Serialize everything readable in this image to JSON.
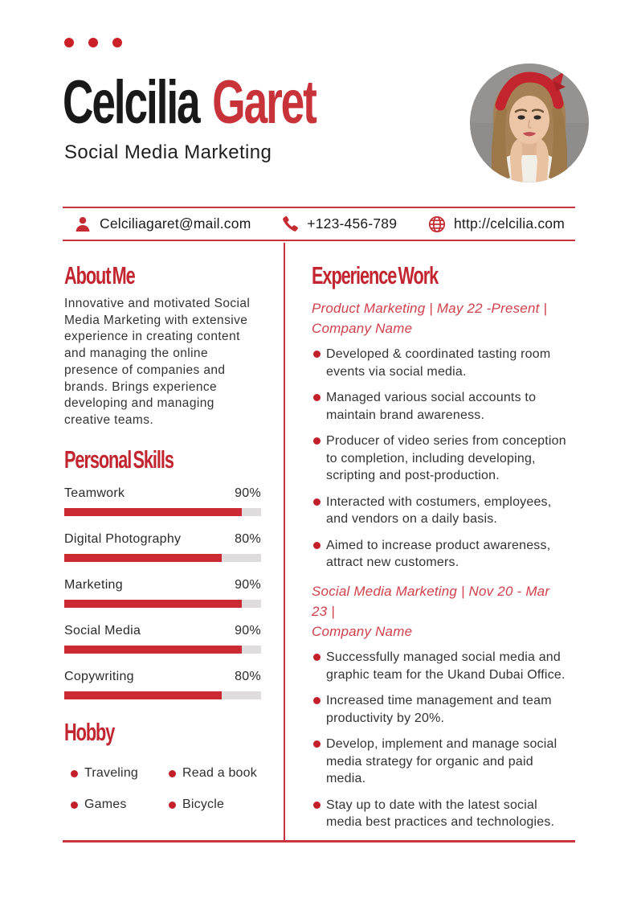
{
  "colors": {
    "accent_red": "#c2252f",
    "line_red": "#c9353c",
    "bar_red": "#cb2a33",
    "job_title_red": "#d0414b",
    "name_red": "#c8333a",
    "text_dark": "#1b1b1b",
    "body_text": "#333333",
    "bar_track": "#dedcdc",
    "photo_bg": "#8e8d8b"
  },
  "header": {
    "first_name": "Celcilia",
    "last_name": "Garet",
    "subtitle": "Social Media Marketing"
  },
  "contact": {
    "items": [
      {
        "icon": "person-icon",
        "text": "Celciliagaret@mail.com"
      },
      {
        "icon": "phone-icon",
        "text": "+123-456-789"
      },
      {
        "icon": "globe-icon",
        "text": "http://celcilia.com"
      }
    ]
  },
  "about": {
    "title": "About Me",
    "lines": [
      "Innovative and motivated Social",
      "Media Marketing with extensive",
      "experience in creating content",
      "and managing the online",
      "presence of companies and",
      "brands. Brings experience",
      "developing and managing",
      "creative teams."
    ]
  },
  "skills": {
    "title": "Personal Skills",
    "items": [
      {
        "label": "Teamwork",
        "percent": "90%",
        "value": 90
      },
      {
        "label": "Digital Photography",
        "percent": "80%",
        "value": 80
      },
      {
        "label": "Marketing",
        "percent": "90%",
        "value": 90
      },
      {
        "label": "Social Media",
        "percent": "90%",
        "value": 90
      },
      {
        "label": "Copywriting",
        "percent": "80%",
        "value": 80
      }
    ]
  },
  "hobby": {
    "title": "Hobby",
    "items": [
      "Traveling",
      "Read a book",
      "Games",
      "Bicycle"
    ]
  },
  "experience": {
    "title": "Experience Work",
    "jobs": [
      {
        "heading_lines": [
          "Product Marketing | May 22 -Present |",
          "Company Name"
        ],
        "bullets": [
          [
            "Developed & coordinated tasting room",
            "events via social media."
          ],
          [
            "Managed various social accounts to",
            "maintain brand awareness."
          ],
          [
            "Producer of video series from conception",
            "to completion, including developing,",
            "scripting and post-production."
          ],
          [
            "Interacted with costumers, employees,",
            "and vendors on a daily basis."
          ],
          [
            "Aimed to increase product awareness,",
            "attract new customers."
          ]
        ]
      },
      {
        "heading_lines": [
          "Social Media Marketing | Nov 20 - Mar 23 |",
          "Company Name"
        ],
        "bullets": [
          [
            "Successfully managed social media and",
            "graphic team for the Ukand Dubai Office."
          ],
          [
            "Increased time management and team",
            "productivity by 20%."
          ],
          [
            "Develop, implement and manage social",
            "media strategy for organic and paid",
            "media."
          ],
          [
            "Stay up to date with the latest social",
            "media best practices and technologies."
          ]
        ]
      }
    ]
  }
}
